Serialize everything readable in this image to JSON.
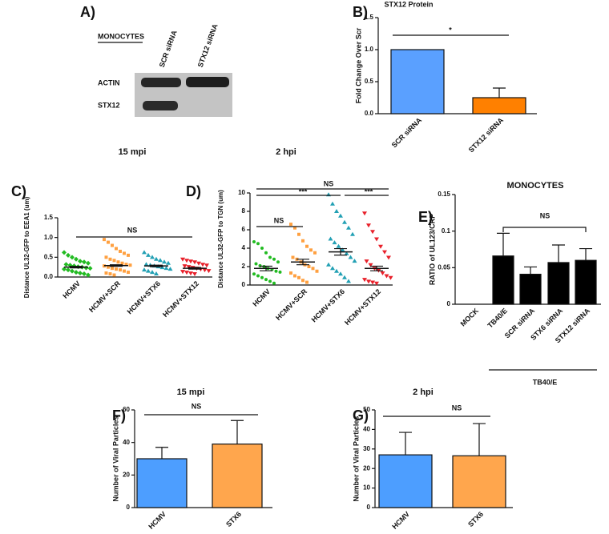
{
  "blot": {
    "panel": "A)",
    "title": "MONOCYTES",
    "lanes": [
      "SCR siRNA",
      "STX12 siRNA"
    ],
    "bands": [
      "ACTIN",
      "STX12"
    ]
  },
  "chart_data": [
    {
      "type": "bar",
      "panel": "B)",
      "title": "STX12 Protein",
      "y_label": "Fold Change Over Scr",
      "categories": [
        "SCR siRNA",
        "STX12 siRNA"
      ],
      "values": [
        1.0,
        0.25
      ],
      "errors": [
        0,
        0.15
      ],
      "colors": [
        "#5aa0ff",
        "#ff8000"
      ],
      "ylim": [
        0,
        1.5
      ],
      "yticks": [
        {
          "value": 0,
          "label": "0.0"
        },
        0.5,
        {
          "value": 1,
          "label": "1.0"
        },
        1.5
      ],
      "annotations": [
        "*"
      ]
    },
    {
      "type": "dotplot",
      "panel": "C)",
      "title": "15 mpi",
      "y_label": "Distance UL32-GFP to EEA1 (um)",
      "categories": [
        "HCMV",
        "HCMV+SCR",
        "HCMV+STX6",
        "HCMV+STX12"
      ],
      "groups": [
        {
          "color": "#22bb22",
          "marker": "diamond",
          "mean": 0.25,
          "sem": 0.02,
          "values": [
            0.62,
            0.55,
            0.5,
            0.45,
            0.4,
            0.38,
            0.35,
            0.32,
            0.3,
            0.28,
            0.26,
            0.25,
            0.23,
            0.22,
            0.2,
            0.18,
            0.15,
            0.12,
            0.1,
            0.08,
            0.05
          ]
        },
        {
          "color": "#ffa040",
          "marker": "square",
          "mean": 0.29,
          "sem": 0.02,
          "values": [
            0.95,
            0.88,
            0.8,
            0.72,
            0.65,
            0.6,
            0.55,
            0.5,
            0.45,
            0.42,
            0.38,
            0.35,
            0.32,
            0.3,
            0.28,
            0.25,
            0.22,
            0.2,
            0.18,
            0.15,
            0.12,
            0.1,
            0.08,
            0.05
          ]
        },
        {
          "color": "#22a0b4",
          "marker": "triangle",
          "mean": 0.28,
          "sem": 0.02,
          "values": [
            0.62,
            0.55,
            0.5,
            0.45,
            0.42,
            0.38,
            0.35,
            0.32,
            0.3,
            0.28,
            0.26,
            0.24,
            0.22,
            0.2,
            0.18,
            0.15,
            0.12,
            0.08
          ]
        },
        {
          "color": "#e8202a",
          "marker": "triangle-down",
          "mean": 0.22,
          "sem": 0.02,
          "values": [
            0.45,
            0.42,
            0.4,
            0.38,
            0.35,
            0.32,
            0.3,
            0.28,
            0.26,
            0.24,
            0.22,
            0.2,
            0.18,
            0.16,
            0.14,
            0.12,
            0.1,
            0.08
          ]
        }
      ],
      "ylim": [
        0,
        1.5
      ],
      "yticks": [
        {
          "value": 0,
          "label": "0.0"
        },
        0.5,
        {
          "value": 1,
          "label": "1.0"
        },
        1.5
      ],
      "annotations": [
        "NS"
      ]
    },
    {
      "type": "dotplot",
      "panel": "D)",
      "title": "2 hpi",
      "y_label": "Distance UL32-GFP to TGN (um)",
      "categories": [
        "HCMV",
        "HCMV+SCR",
        "HCMV+STX6",
        "HCMV+STX12"
      ],
      "groups": [
        {
          "color": "#22bb22",
          "marker": "circle",
          "mean": 1.8,
          "sem": 0.25,
          "values": [
            4.7,
            4.5,
            4.0,
            3.5,
            3.0,
            2.8,
            2.5,
            2.3,
            2.1,
            2.0,
            1.8,
            1.7,
            1.5,
            1.4,
            1.2,
            1.0,
            0.8,
            0.6,
            0.4,
            0.2
          ]
        },
        {
          "color": "#ffa040",
          "marker": "square",
          "mean": 2.5,
          "sem": 0.3,
          "values": [
            6.6,
            6.2,
            5.5,
            4.8,
            4.2,
            3.8,
            3.5,
            3.0,
            2.8,
            2.5,
            2.2,
            2.0,
            1.8,
            1.5,
            1.3,
            1.0,
            0.8,
            0.5,
            0.3
          ]
        },
        {
          "color": "#22a0b4",
          "marker": "triangle",
          "mean": 3.6,
          "sem": 0.35,
          "values": [
            9.8,
            8.8,
            8.0,
            7.5,
            6.8,
            6.2,
            5.5,
            5.0,
            4.6,
            4.2,
            3.8,
            3.4,
            3.0,
            2.6,
            2.2,
            1.8,
            1.5,
            1.2,
            0.8,
            0.4
          ]
        },
        {
          "color": "#e8202a",
          "marker": "triangle-down",
          "mean": 1.8,
          "sem": 0.25,
          "values": [
            7.8,
            6.5,
            5.8,
            5.0,
            4.2,
            3.6,
            3.0,
            2.6,
            2.2,
            1.8,
            1.6,
            1.3,
            1.0,
            0.8,
            0.6,
            0.4,
            0.3,
            0.2
          ]
        }
      ],
      "ylim": [
        0,
        10
      ],
      "yticks": [
        0,
        2,
        4,
        6,
        8,
        10
      ],
      "annotations": [
        "***",
        "NS",
        "***",
        "NS"
      ]
    },
    {
      "type": "bar",
      "panel": "E)",
      "title": "MONOCYTES",
      "y_label": "RATIO of  UL123/CRP",
      "categories": [
        "MOCK",
        "TB40/E",
        "SCR siRNA",
        "STX6 siRNA",
        "STX12 siRNA"
      ],
      "values": [
        0,
        0.066,
        0.041,
        0.057,
        0.06
      ],
      "errors": [
        0,
        0.031,
        0.01,
        0.024,
        0.016
      ],
      "colors": [
        "#000000",
        "#000000",
        "#000000",
        "#000000",
        "#000000"
      ],
      "ylim": [
        0,
        0.15
      ],
      "yticks": [
        0,
        0.05,
        0.1,
        0.15
      ],
      "annotations": [
        "NS"
      ],
      "group_label": "TB40/E"
    },
    {
      "type": "bar",
      "panel": "F)",
      "title": "15 mpi",
      "y_label": "Number of Viral Particles",
      "categories": [
        "HCMV",
        "STX6"
      ],
      "values": [
        30,
        39
      ],
      "errors": [
        7,
        14.5
      ],
      "colors": [
        "#4d9eff",
        "#ffa64d"
      ],
      "ylim": [
        0,
        60
      ],
      "yticks": [
        0,
        20,
        40,
        60
      ],
      "annotations": [
        "NS"
      ]
    },
    {
      "type": "bar",
      "panel": "G)",
      "title": "2 hpi",
      "y_label": "Number of Viral Particles",
      "categories": [
        "HCMV",
        "STX6"
      ],
      "values": [
        27,
        26.5
      ],
      "errors": [
        11.5,
        16.5
      ],
      "colors": [
        "#4d9eff",
        "#ffa64d"
      ],
      "ylim": [
        0,
        50
      ],
      "yticks": [
        0,
        10,
        20,
        30,
        40,
        50
      ],
      "annotations": [
        "NS"
      ]
    }
  ]
}
